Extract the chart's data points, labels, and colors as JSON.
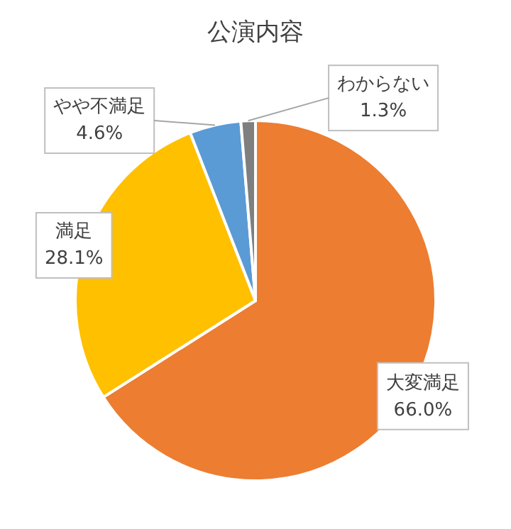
{
  "chart_data": {
    "type": "pie",
    "title": "公演内容",
    "categories": [
      "大変満足",
      "満足",
      "やや不満足",
      "わからない"
    ],
    "values": [
      66.0,
      28.1,
      4.6,
      1.3
    ],
    "value_labels": [
      "66.0%",
      "28.1%",
      "4.6%",
      "1.3%"
    ],
    "colors": [
      "#ed7d31",
      "#ffc000",
      "#5b9bd5",
      "#7f7f7f"
    ]
  }
}
